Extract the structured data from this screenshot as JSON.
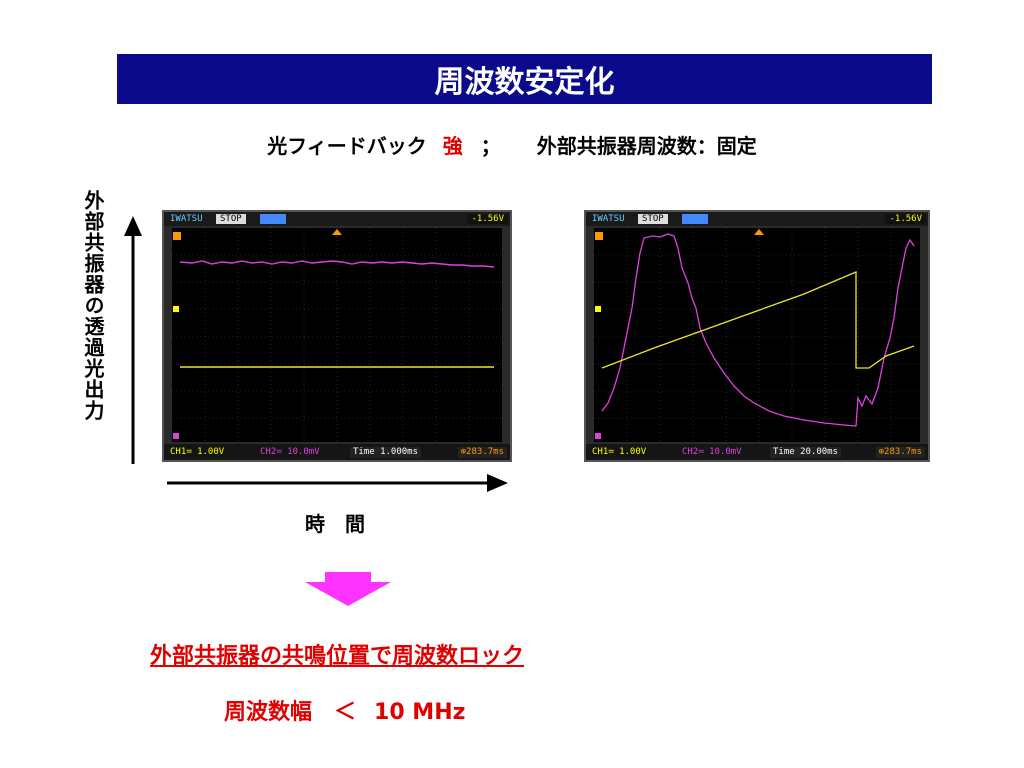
{
  "slide": {
    "title": "周波数安定化",
    "subtitle": {
      "part1": "光フィードバック",
      "strong": "強",
      "sep": "；",
      "part2": "外部共振器周波数：固定"
    },
    "y_label": "外部共振器の透過光出力",
    "x_label": "時　間",
    "conclusion": "外部共振器の共鳴位置で周波数ロック",
    "bandwidth": {
      "label": "周波数幅",
      "op": "＜",
      "value": "10 MHz"
    },
    "colors": {
      "title_bg": "#0a0a8a",
      "accent": "#e00000",
      "arrow": "#ff33ff",
      "ch1": "#e8e830",
      "ch2": "#e040e0"
    }
  },
  "scopes": [
    {
      "brand": "IWATSU",
      "status": "STOP",
      "trigger": "-1.56V",
      "ch1": "CH1≕  1.00V",
      "ch2": "CH2≕ 10.0mV",
      "time": "Time 1.000ms",
      "offset": "⊕283.7ms"
    },
    {
      "brand": "IWATSU",
      "status": "STOP",
      "trigger": "-1.56V",
      "ch1": "CH1≕  1.00V",
      "ch2": "CH2≕ 10.0mV",
      "time": "Time 20.00ms",
      "offset": "⊕283.7ms"
    }
  ]
}
